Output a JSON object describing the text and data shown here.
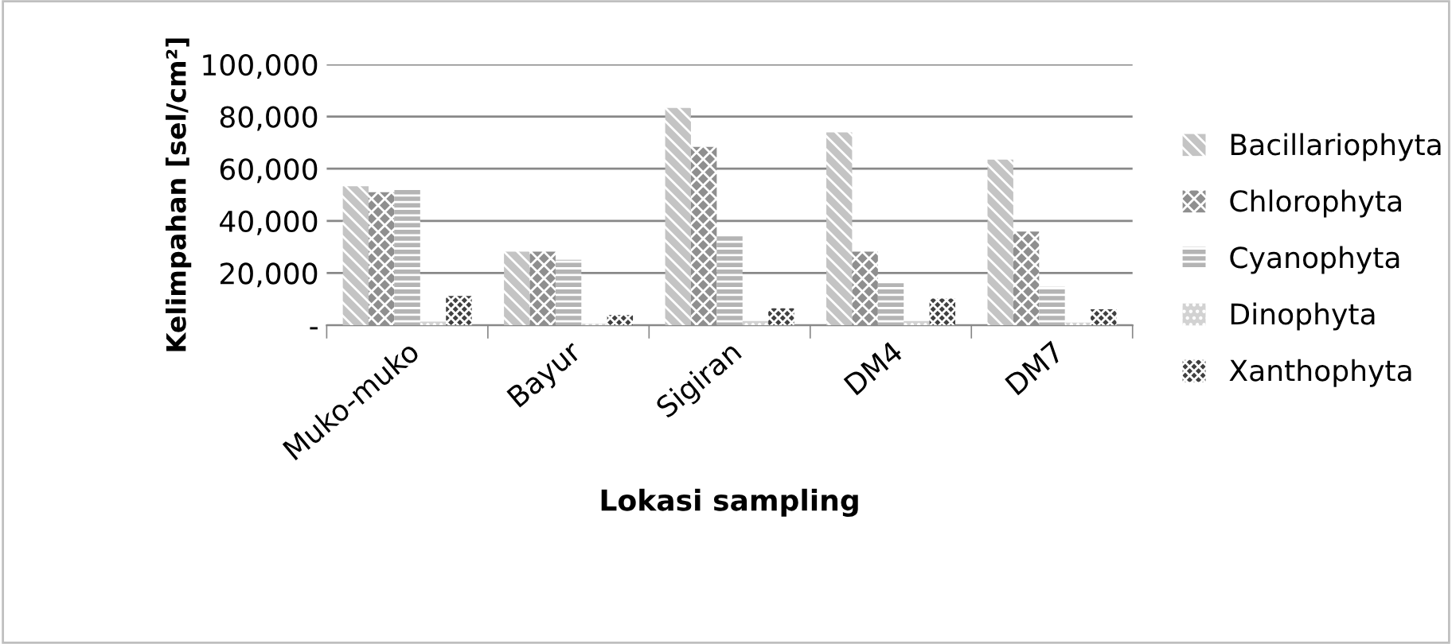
{
  "chart_data": {
    "type": "bar",
    "xlabel": "Lokasi sampling",
    "ylabel": "Kelimpahan [sel/cm²]",
    "categories": [
      "Muko-muko",
      "Bayur",
      "Sigiran",
      "DM4",
      "DM7"
    ],
    "series": [
      {
        "name": "Bacillariophyta",
        "color": "#c4c4c4",
        "values": [
          53300,
          28200,
          83300,
          73900,
          63500
        ]
      },
      {
        "name": "Chlorophyta",
        "color": "#8f8f8f",
        "values": [
          51000,
          28200,
          68400,
          28200,
          35900
        ]
      },
      {
        "name": "Cyanophyta",
        "color": "#b4b4b4",
        "values": [
          52400,
          25100,
          34300,
          16100,
          14700
        ]
      },
      {
        "name": "Dinophyta",
        "color": "#d2d2d2",
        "values": [
          1400,
          500,
          1600,
          1600,
          1000
        ]
      },
      {
        "name": "Xanthophyta",
        "color": "#404040",
        "values": [
          11200,
          3900,
          6500,
          10200,
          6100
        ]
      }
    ],
    "ylim": [
      0,
      100000
    ],
    "yticks": [
      {
        "value": 0,
        "label": "-"
      },
      {
        "value": 20000,
        "label": "20,000"
      },
      {
        "value": 40000,
        "label": "40,000"
      },
      {
        "value": 60000,
        "label": "60,000"
      },
      {
        "value": 80000,
        "label": "80,000"
      },
      {
        "value": 100000,
        "label": "100,000"
      }
    ],
    "grid": "y",
    "legend": "right"
  }
}
